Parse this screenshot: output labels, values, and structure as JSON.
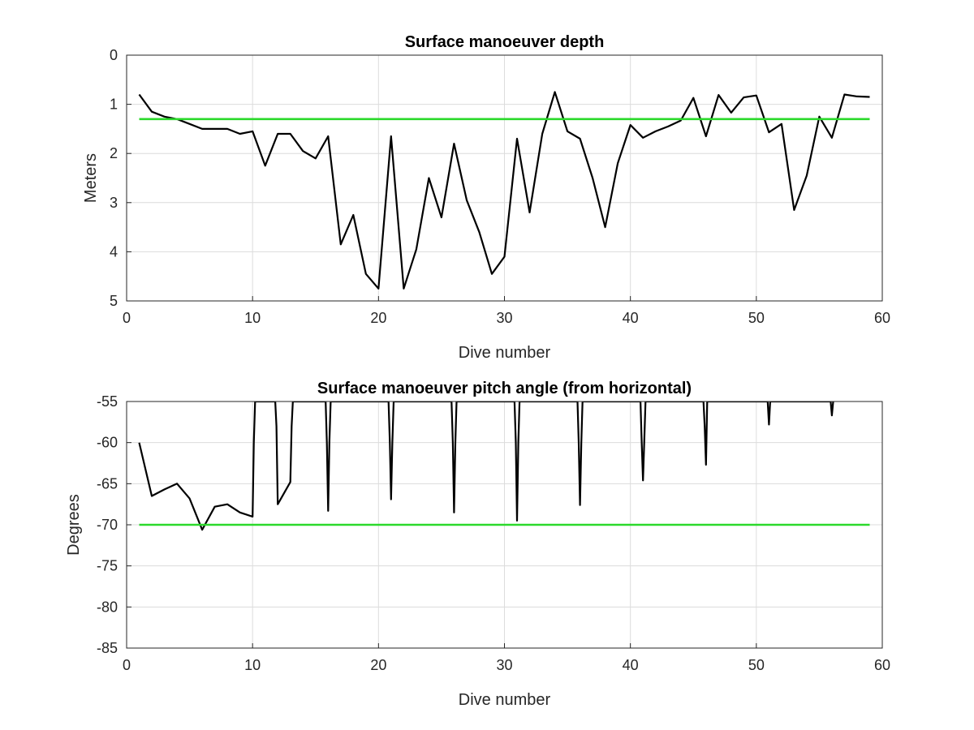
{
  "chart_data": [
    {
      "type": "line",
      "title": "Surface manoeuver depth",
      "xlabel": "Dive number",
      "ylabel": "Meters",
      "xlim": [
        0,
        60
      ],
      "ylim": [
        0,
        5
      ],
      "y_reversed": true,
      "grid": true,
      "xticks": [
        "0",
        "10",
        "20",
        "30",
        "40",
        "50",
        "60"
      ],
      "yticks": [
        "0",
        "1",
        "2",
        "3",
        "4",
        "5"
      ],
      "series": [
        {
          "color": "#000000",
          "x": [
            1,
            2,
            3,
            4,
            5,
            6,
            7,
            8,
            9,
            10,
            11,
            12,
            13,
            14,
            15,
            16,
            17,
            18,
            19,
            20,
            21,
            22,
            23,
            24,
            25,
            26,
            27,
            28,
            29,
            30,
            31,
            32,
            33,
            34,
            35,
            36,
            37,
            38,
            39,
            40,
            41,
            42,
            43,
            44,
            45,
            46,
            47,
            48,
            49,
            50,
            51,
            52,
            53,
            54,
            55,
            56,
            57,
            58,
            59
          ],
          "y": [
            0.8,
            1.15,
            1.25,
            1.3,
            1.4,
            1.5,
            1.5,
            1.5,
            1.6,
            1.55,
            2.25,
            1.6,
            1.6,
            1.95,
            2.1,
            1.65,
            3.85,
            3.25,
            4.45,
            4.75,
            1.65,
            4.75,
            3.95,
            2.5,
            3.3,
            1.8,
            2.95,
            3.6,
            4.45,
            4.1,
            1.7,
            3.2,
            1.6,
            0.75,
            1.55,
            1.7,
            2.5,
            3.5,
            2.2,
            1.42,
            1.68,
            1.55,
            1.45,
            1.33,
            0.87,
            1.65,
            0.81,
            1.17,
            0.86,
            0.82,
            1.57,
            1.4,
            3.15,
            2.45,
            1.25,
            1.68,
            0.8,
            0.84,
            0.85
          ]
        },
        {
          "color": "#2bd92b",
          "x": [
            1,
            59
          ],
          "y": [
            1.3,
            1.3
          ]
        }
      ]
    },
    {
      "type": "line",
      "title": "Surface manoeuver pitch angle (from horizontal)",
      "xlabel": "Dive number",
      "ylabel": "Degrees",
      "xlim": [
        0,
        60
      ],
      "ylim": [
        -85,
        -55
      ],
      "grid": true,
      "xticks": [
        "0",
        "10",
        "20",
        "30",
        "40",
        "50",
        "60"
      ],
      "yticks": [
        "-55",
        "-60",
        "-65",
        "-70",
        "-75",
        "-80",
        "-85"
      ],
      "series": [
        {
          "color": "#000000",
          "x": [
            1,
            2,
            3,
            4,
            5,
            6,
            7,
            8,
            9,
            10,
            10.1,
            10.2,
            11.8,
            11.9,
            12,
            13,
            13.1,
            13.2,
            15.8,
            15.9,
            16,
            16.1,
            16.2,
            20.8,
            20.9,
            21,
            21.1,
            21.2,
            25.8,
            25.9,
            26,
            26.1,
            26.2,
            30.8,
            30.9,
            31,
            31.1,
            31.2,
            35.8,
            35.9,
            36,
            36.1,
            36.2,
            40.8,
            40.9,
            41,
            41.1,
            41.2,
            45.8,
            45.9,
            46,
            46.1,
            50.9,
            51,
            51.1,
            55.9,
            56,
            56.1
          ],
          "y": [
            -60,
            -66.5,
            -65.7,
            -65,
            -66.8,
            -70.6,
            -67.8,
            -67.5,
            -68.5,
            -69,
            -60,
            -55,
            -55,
            -58,
            -67.5,
            -64.8,
            -58,
            -55,
            -55,
            -60,
            -68.3,
            -60,
            -55,
            -55,
            -60,
            -66.9,
            -60,
            -55,
            -55,
            -60,
            -68.5,
            -60,
            -55,
            -55,
            -60,
            -69.5,
            -60,
            -55,
            -55,
            -60,
            -67.6,
            -60,
            -55,
            -55,
            -60,
            -64.6,
            -60,
            -55,
            -55,
            -58,
            -62.7,
            -55,
            -55,
            -57.8,
            -55,
            -55,
            -56.7,
            -55
          ]
        },
        {
          "color": "#2bd92b",
          "x": [
            1,
            59
          ],
          "y": [
            -70,
            -70
          ]
        }
      ]
    }
  ]
}
